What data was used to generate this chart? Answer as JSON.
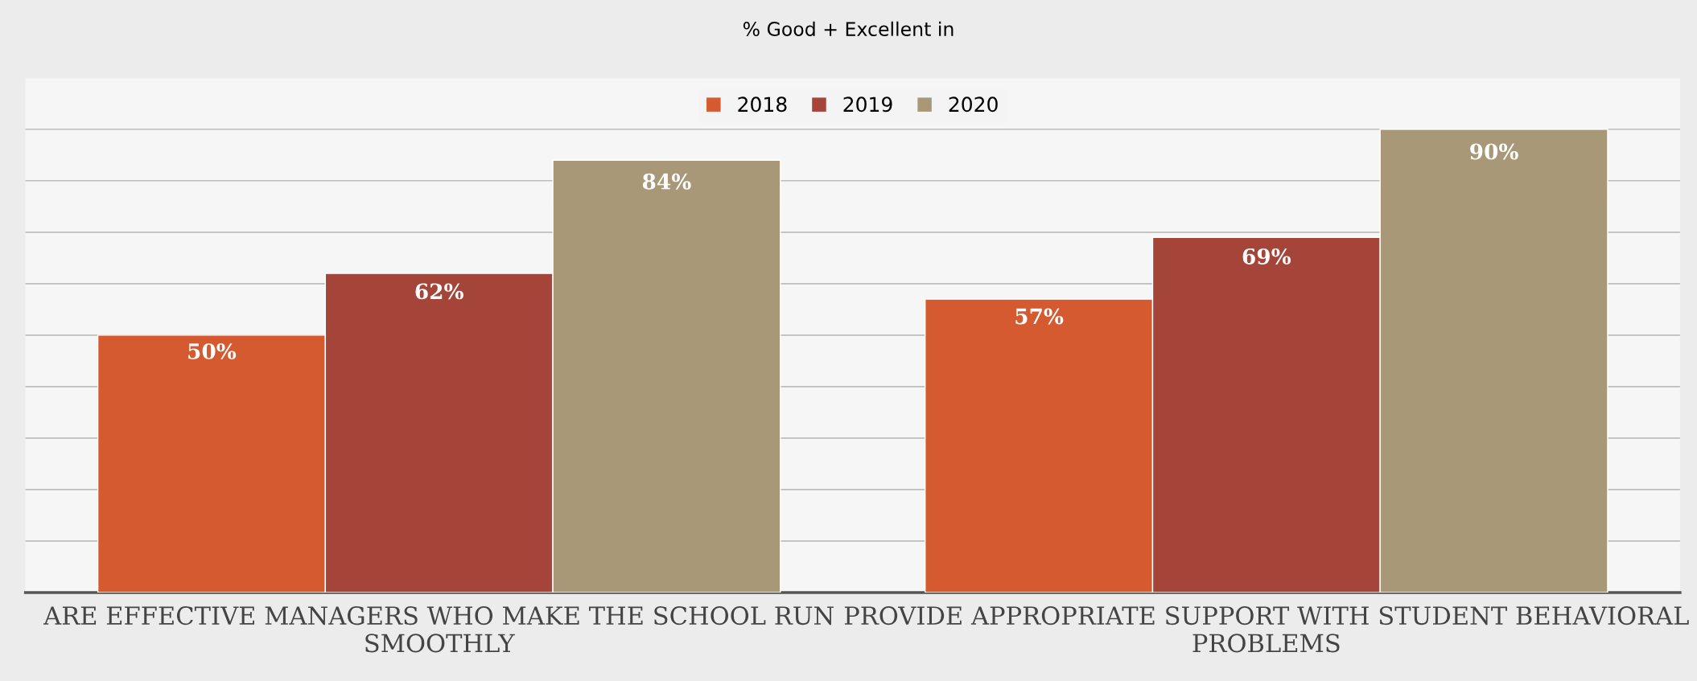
{
  "chart_data": {
    "type": "bar",
    "title": "% Good + Excellent in",
    "categories": [
      "ARE EFFECTIVE MANAGERS WHO MAKE THE SCHOOL RUN SMOOTHLY",
      "PROVIDE APPROPRIATE SUPPORT WITH STUDENT BEHAVIORAL PROBLEMS"
    ],
    "series": [
      {
        "name": "2018",
        "color": "#d65a30",
        "values": [
          50,
          57
        ],
        "value_labels": [
          "50%",
          "57%"
        ]
      },
      {
        "name": "2019",
        "color": "#a5453a",
        "values": [
          62,
          69
        ],
        "value_labels": [
          "62%",
          "69%"
        ]
      },
      {
        "name": "2020",
        "color": "#a89878",
        "values": [
          84,
          90
        ],
        "value_labels": [
          "84%",
          "90%"
        ]
      }
    ],
    "tick_labels": "x",
    "grid": "y",
    "legend": "top"
  }
}
